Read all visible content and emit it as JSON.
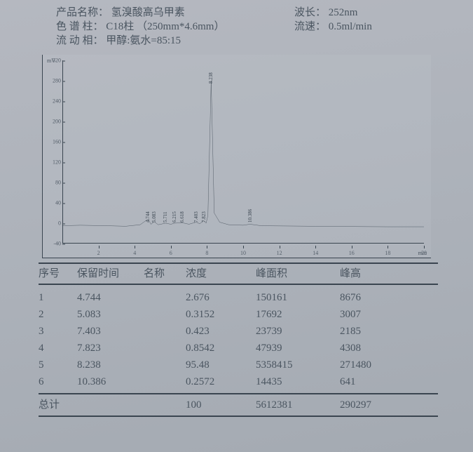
{
  "header": {
    "product_label": "产品名称：",
    "product_value": "氢溴酸高乌甲素",
    "column_label": "色 谱 柱：",
    "column_value": "C18柱 （250mm*4.6mm）",
    "mobile_label": "流 动 相：",
    "mobile_value": "甲醇:氨水=85:15",
    "wavelength_label": "波长：",
    "wavelength_value": "252nm",
    "flow_label": "流速：",
    "flow_value": "0.5ml/min"
  },
  "chart": {
    "type": "chromatogram-line",
    "y_unit": "mV",
    "x_unit": "min",
    "ylim": [
      -40,
      320
    ],
    "xlim": [
      0,
      20
    ],
    "yticks": [
      -40,
      0,
      40,
      80,
      120,
      160,
      200,
      240,
      280,
      320
    ],
    "xticks": [
      2,
      4,
      6,
      8,
      10,
      12,
      14,
      16,
      18,
      20
    ],
    "line_color": "#2a3540",
    "border_color": "#3a4550",
    "background_color": "#b0b6be",
    "tick_fontsize": 8,
    "peak_label_fontsize": 7,
    "baseline_y": -5,
    "series": [
      {
        "x": 0.0,
        "y": -5
      },
      {
        "x": 1.0,
        "y": -4
      },
      {
        "x": 2.5,
        "y": -5
      },
      {
        "x": 3.5,
        "y": -6
      },
      {
        "x": 4.3,
        "y": -3
      },
      {
        "x": 4.74,
        "y": 8
      },
      {
        "x": 4.9,
        "y": -2
      },
      {
        "x": 5.08,
        "y": 3
      },
      {
        "x": 5.3,
        "y": -3
      },
      {
        "x": 5.71,
        "y": 0
      },
      {
        "x": 6.0,
        "y": -2
      },
      {
        "x": 6.21,
        "y": 0
      },
      {
        "x": 6.62,
        "y": 1
      },
      {
        "x": 7.0,
        "y": -2
      },
      {
        "x": 7.4,
        "y": 2
      },
      {
        "x": 7.6,
        "y": -1
      },
      {
        "x": 7.82,
        "y": 5
      },
      {
        "x": 7.95,
        "y": 0
      },
      {
        "x": 8.05,
        "y": 15
      },
      {
        "x": 8.23,
        "y": 280
      },
      {
        "x": 8.4,
        "y": 20
      },
      {
        "x": 8.7,
        "y": 2
      },
      {
        "x": 9.2,
        "y": -3
      },
      {
        "x": 10.0,
        "y": -4
      },
      {
        "x": 10.38,
        "y": -2
      },
      {
        "x": 11.0,
        "y": -5
      },
      {
        "x": 14.0,
        "y": -6
      },
      {
        "x": 18.0,
        "y": -7
      },
      {
        "x": 20.0,
        "y": -7
      }
    ],
    "peak_labels": [
      {
        "x": 4.74,
        "label": "4.744"
      },
      {
        "x": 5.08,
        "label": "5.083"
      },
      {
        "x": 5.71,
        "label": "5.711"
      },
      {
        "x": 6.21,
        "label": "6.215"
      },
      {
        "x": 6.62,
        "label": "6.618"
      },
      {
        "x": 7.4,
        "label": "7.403"
      },
      {
        "x": 7.82,
        "label": "7.823"
      },
      {
        "x": 8.23,
        "label": "8.238"
      },
      {
        "x": 10.38,
        "label": "10.386"
      }
    ]
  },
  "table": {
    "columns": {
      "c1": "序号",
      "c2": "保留时间",
      "c3": "名称",
      "c4": "浓度",
      "c5": "峰面积",
      "c6": "峰高"
    },
    "rows": [
      {
        "no": "1",
        "rt": "4.744",
        "name": "",
        "conc": "2.676",
        "area": "150161",
        "height": "8676"
      },
      {
        "no": "2",
        "rt": "5.083",
        "name": "",
        "conc": "0.3152",
        "area": "17692",
        "height": "3007"
      },
      {
        "no": "3",
        "rt": "7.403",
        "name": "",
        "conc": "0.423",
        "area": "23739",
        "height": "2185"
      },
      {
        "no": "4",
        "rt": "7.823",
        "name": "",
        "conc": "0.8542",
        "area": "47939",
        "height": "4308"
      },
      {
        "no": "5",
        "rt": "8.238",
        "name": "",
        "conc": "95.48",
        "area": "5358415",
        "height": "271480"
      },
      {
        "no": "6",
        "rt": "10.386",
        "name": "",
        "conc": "0.2572",
        "area": "14435",
        "height": "641"
      }
    ],
    "footer": {
      "label": "总计",
      "conc": "100",
      "area": "5612381",
      "height": "290297"
    }
  }
}
